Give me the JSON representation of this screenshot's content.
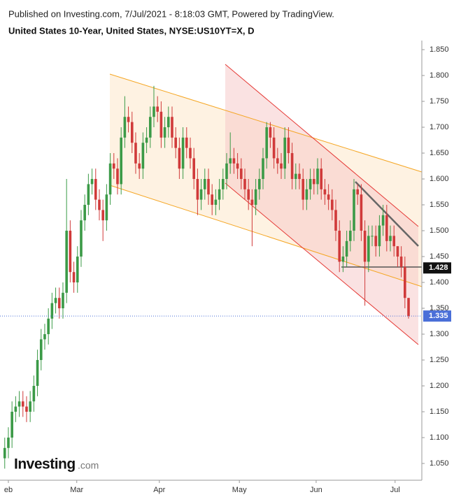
{
  "header": {
    "published": "Published on Investing.com, 7/Jul/2021 - 8:18:03 GMT, Powered by TradingView.",
    "instrument": "United States 10-Year, United States, NYSE:US10YT=X, D"
  },
  "logo": {
    "name": "Investing",
    "suffix": ".com"
  },
  "chart_data": {
    "type": "candlestick",
    "x": [
      -1,
      0,
      1,
      2,
      3,
      4,
      5,
      6,
      7,
      8,
      9,
      10,
      11,
      12,
      13,
      14,
      15,
      16,
      17,
      18,
      19,
      20,
      21,
      22,
      23,
      24,
      25,
      26,
      27,
      28,
      29,
      30,
      31,
      32,
      33,
      34,
      35,
      36,
      37,
      38,
      39,
      40,
      41,
      42,
      43,
      44,
      45,
      46,
      47,
      48,
      49,
      50,
      51,
      52,
      53,
      54,
      55,
      56,
      57,
      58,
      59,
      60,
      61,
      62,
      63,
      64,
      65,
      66,
      67,
      68,
      69,
      70,
      71,
      72,
      73,
      74,
      75,
      76,
      77,
      78,
      79,
      80,
      81,
      82,
      83,
      84,
      85,
      86,
      87,
      88,
      89,
      90,
      91,
      92,
      93,
      94,
      95,
      96,
      97,
      98,
      99,
      100,
      101,
      102,
      103,
      104,
      105,
      106,
      107,
      108,
      109,
      110
    ],
    "open": [
      1.06,
      1.08,
      1.1,
      1.15,
      1.16,
      1.17,
      1.16,
      1.15,
      1.17,
      1.2,
      1.25,
      1.29,
      1.3,
      1.33,
      1.36,
      1.37,
      1.35,
      1.38,
      1.5,
      1.42,
      1.4,
      1.45,
      1.52,
      1.55,
      1.59,
      1.6,
      1.56,
      1.54,
      1.52,
      1.57,
      1.63,
      1.62,
      1.59,
      1.68,
      1.72,
      1.71,
      1.67,
      1.63,
      1.62,
      1.67,
      1.68,
      1.72,
      1.74,
      1.73,
      1.68,
      1.7,
      1.72,
      1.68,
      1.66,
      1.62,
      1.68,
      1.66,
      1.64,
      1.6,
      1.56,
      1.58,
      1.6,
      1.57,
      1.55,
      1.56,
      1.58,
      1.6,
      1.63,
      1.64,
      1.63,
      1.62,
      1.6,
      1.58,
      1.56,
      1.55,
      1.58,
      1.6,
      1.64,
      1.7,
      1.68,
      1.64,
      1.63,
      1.62,
      1.68,
      1.65,
      1.6,
      1.61,
      1.6,
      1.56,
      1.58,
      1.6,
      1.59,
      1.62,
      1.58,
      1.57,
      1.56,
      1.54,
      1.5,
      1.44,
      1.45,
      1.48,
      1.5,
      1.58,
      1.57,
      1.5,
      1.44,
      1.49,
      1.49,
      1.47,
      1.51,
      1.53,
      1.48,
      1.49,
      1.47,
      1.45,
      1.43,
      1.37
    ],
    "high": [
      1.1,
      1.12,
      1.17,
      1.18,
      1.19,
      1.19,
      1.18,
      1.19,
      1.22,
      1.27,
      1.31,
      1.32,
      1.35,
      1.38,
      1.39,
      1.39,
      1.4,
      1.6,
      1.52,
      1.44,
      1.47,
      1.54,
      1.57,
      1.61,
      1.62,
      1.62,
      1.58,
      1.56,
      1.59,
      1.65,
      1.65,
      1.64,
      1.7,
      1.76,
      1.74,
      1.73,
      1.69,
      1.65,
      1.69,
      1.7,
      1.74,
      1.78,
      1.76,
      1.75,
      1.72,
      1.74,
      1.74,
      1.7,
      1.68,
      1.7,
      1.7,
      1.68,
      1.66,
      1.62,
      1.6,
      1.62,
      1.62,
      1.59,
      1.58,
      1.6,
      1.62,
      1.65,
      1.69,
      1.66,
      1.65,
      1.64,
      1.62,
      1.6,
      1.58,
      1.6,
      1.62,
      1.66,
      1.71,
      1.71,
      1.7,
      1.66,
      1.65,
      1.7,
      1.7,
      1.67,
      1.63,
      1.63,
      1.62,
      1.6,
      1.62,
      1.62,
      1.64,
      1.64,
      1.6,
      1.59,
      1.58,
      1.56,
      1.52,
      1.47,
      1.5,
      1.52,
      1.6,
      1.59,
      1.59,
      1.52,
      1.51,
      1.51,
      1.51,
      1.53,
      1.55,
      1.55,
      1.51,
      1.51,
      1.47,
      1.47,
      1.45,
      1.37
    ],
    "low": [
      1.04,
      1.06,
      1.08,
      1.13,
      1.14,
      1.14,
      1.13,
      1.13,
      1.15,
      1.18,
      1.23,
      1.27,
      1.28,
      1.31,
      1.34,
      1.33,
      1.33,
      1.36,
      1.4,
      1.38,
      1.38,
      1.43,
      1.5,
      1.53,
      1.57,
      1.54,
      1.52,
      1.48,
      1.5,
      1.55,
      1.6,
      1.57,
      1.57,
      1.66,
      1.69,
      1.65,
      1.61,
      1.6,
      1.6,
      1.65,
      1.66,
      1.7,
      1.71,
      1.66,
      1.66,
      1.68,
      1.66,
      1.64,
      1.6,
      1.6,
      1.64,
      1.62,
      1.58,
      1.53,
      1.54,
      1.56,
      1.55,
      1.53,
      1.53,
      1.54,
      1.56,
      1.58,
      1.61,
      1.61,
      1.6,
      1.58,
      1.56,
      1.54,
      1.47,
      1.53,
      1.56,
      1.58,
      1.62,
      1.66,
      1.62,
      1.61,
      1.6,
      1.6,
      1.63,
      1.58,
      1.58,
      1.58,
      1.54,
      1.54,
      1.56,
      1.57,
      1.57,
      1.56,
      1.55,
      1.54,
      1.52,
      1.48,
      1.42,
      1.42,
      1.43,
      1.46,
      1.48,
      1.55,
      1.48,
      1.355,
      1.42,
      1.47,
      1.45,
      1.45,
      1.49,
      1.46,
      1.46,
      1.45,
      1.43,
      1.41,
      1.35,
      1.33
    ],
    "close": [
      1.08,
      1.1,
      1.15,
      1.16,
      1.17,
      1.16,
      1.15,
      1.17,
      1.2,
      1.25,
      1.29,
      1.3,
      1.33,
      1.36,
      1.37,
      1.35,
      1.38,
      1.5,
      1.42,
      1.4,
      1.45,
      1.52,
      1.55,
      1.59,
      1.6,
      1.56,
      1.54,
      1.52,
      1.57,
      1.63,
      1.62,
      1.59,
      1.68,
      1.72,
      1.71,
      1.67,
      1.63,
      1.62,
      1.67,
      1.68,
      1.72,
      1.74,
      1.73,
      1.68,
      1.7,
      1.72,
      1.68,
      1.66,
      1.62,
      1.68,
      1.66,
      1.64,
      1.6,
      1.56,
      1.58,
      1.6,
      1.57,
      1.55,
      1.56,
      1.58,
      1.6,
      1.63,
      1.64,
      1.63,
      1.62,
      1.6,
      1.58,
      1.56,
      1.55,
      1.58,
      1.6,
      1.64,
      1.7,
      1.68,
      1.64,
      1.63,
      1.62,
      1.68,
      1.65,
      1.6,
      1.61,
      1.6,
      1.56,
      1.58,
      1.6,
      1.59,
      1.62,
      1.58,
      1.57,
      1.56,
      1.54,
      1.5,
      1.44,
      1.45,
      1.48,
      1.5,
      1.58,
      1.57,
      1.5,
      1.44,
      1.49,
      1.49,
      1.47,
      1.51,
      1.53,
      1.48,
      1.49,
      1.47,
      1.45,
      1.43,
      1.37,
      1.335
    ],
    "up_color": "#3b9a47",
    "down_color": "#d03a3a",
    "xlim": [
      -2.3,
      113.65
    ],
    "xticks": [
      {
        "value": 0,
        "label": "eb"
      },
      {
        "value": 18.8,
        "label": "Mar"
      },
      {
        "value": 41.5,
        "label": "Apr"
      },
      {
        "value": 63.5,
        "label": "May"
      },
      {
        "value": 84.6,
        "label": "Jun"
      },
      {
        "value": 106.3,
        "label": "Jul"
      }
    ],
    "ylim": [
      1.0203,
      1.8676
    ],
    "yticks": [
      {
        "value": 1.05,
        "label": "1.050"
      },
      {
        "value": 1.1,
        "label": "1.100"
      },
      {
        "value": 1.15,
        "label": "1.150"
      },
      {
        "value": 1.2,
        "label": "1.200"
      },
      {
        "value": 1.25,
        "label": "1.250"
      },
      {
        "value": 1.3,
        "label": "1.300"
      },
      {
        "value": 1.35,
        "label": "1.350"
      },
      {
        "value": 1.4,
        "label": "1.400"
      },
      {
        "value": 1.45,
        "label": "1.450"
      },
      {
        "value": 1.5,
        "label": "1.500"
      },
      {
        "value": 1.55,
        "label": "1.550"
      },
      {
        "value": 1.6,
        "label": "1.600"
      },
      {
        "value": 1.65,
        "label": "1.650"
      },
      {
        "value": 1.7,
        "label": "1.700"
      },
      {
        "value": 1.75,
        "label": "1.750"
      },
      {
        "value": 1.8,
        "label": "1.800"
      },
      {
        "value": 1.85,
        "label": "1.850"
      }
    ],
    "markers": [
      {
        "value": 1.428,
        "color": "#111111"
      },
      {
        "value": 1.335,
        "color": "#4a6fd8"
      }
    ]
  }
}
